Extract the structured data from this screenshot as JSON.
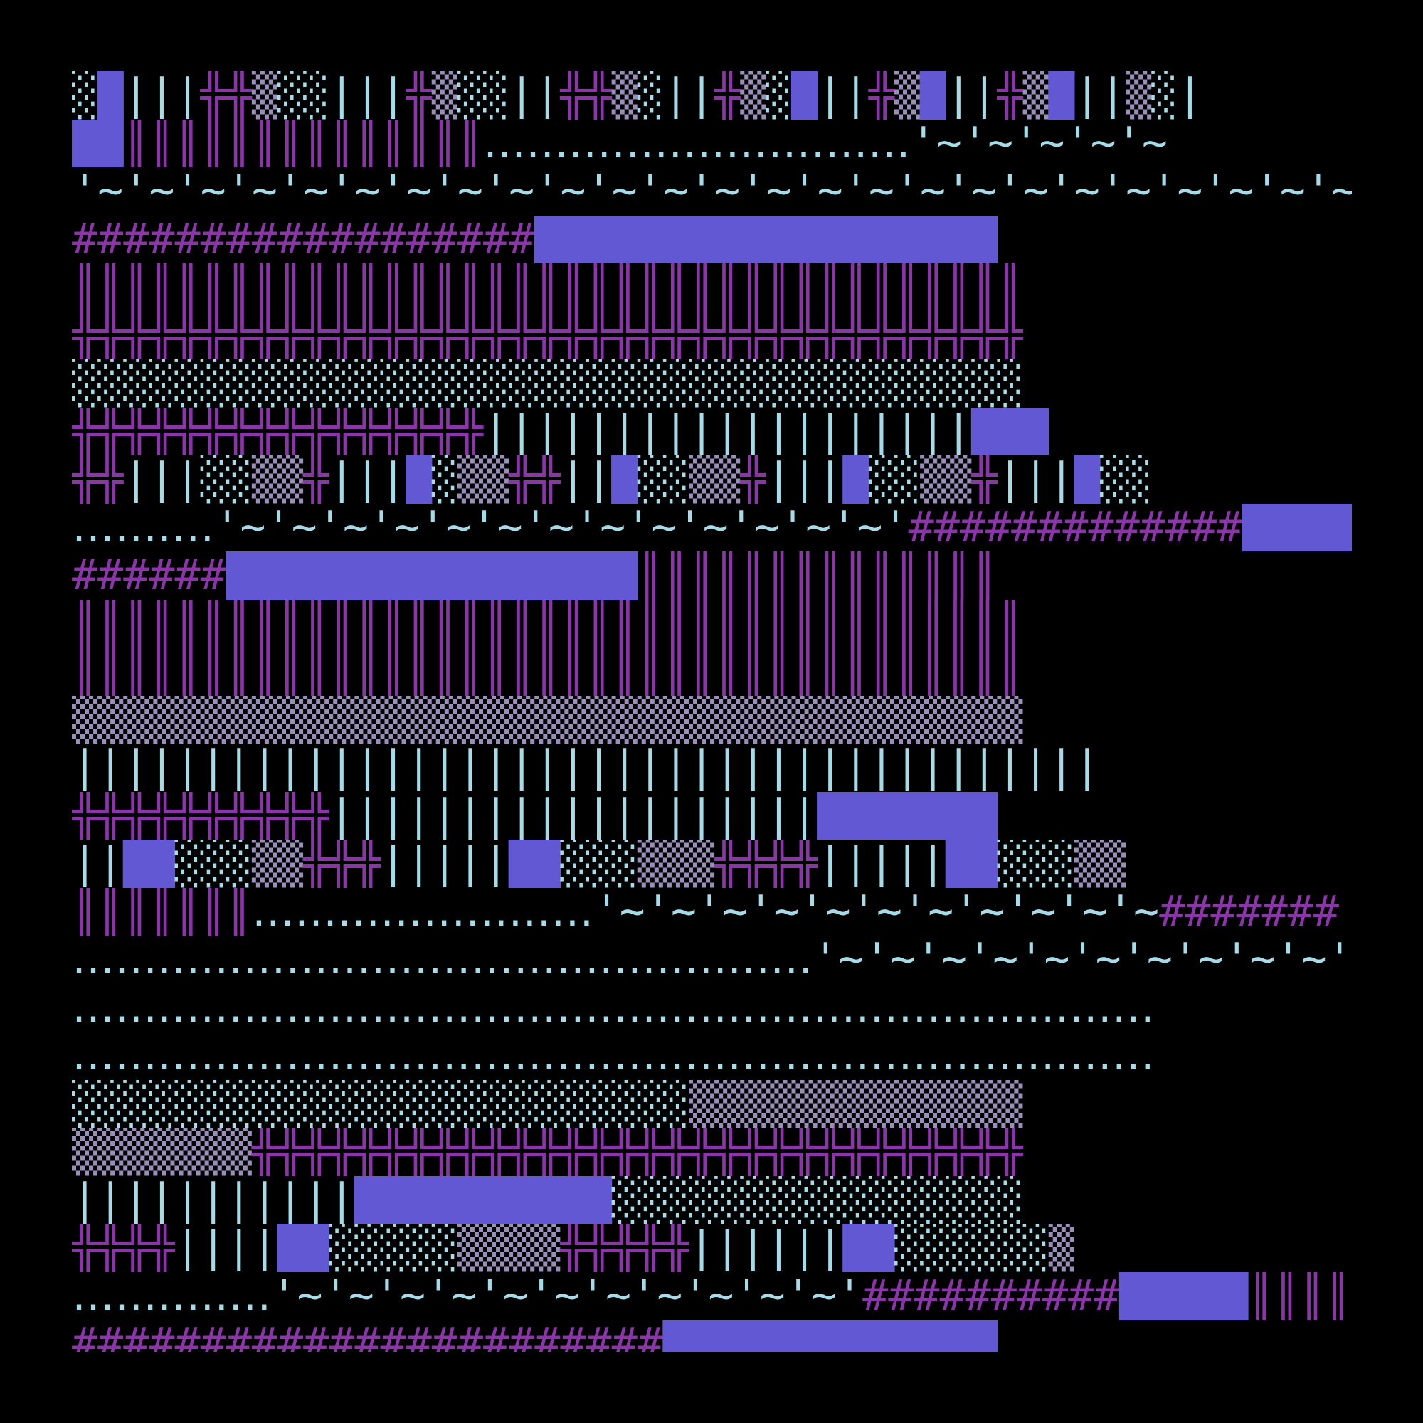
{
  "palette": {
    "background": "#000000",
    "purple": "#8a35a8",
    "violet": "#6258d4",
    "lightblue": "#a8dbe8",
    "muted": "#9a8fb8"
  },
  "rows": [
    [
      [
        "lightblue",
        "░"
      ],
      [
        "violet",
        "█"
      ],
      [
        "lightblue",
        "|||"
      ],
      [
        "purple",
        "╬╬"
      ],
      [
        "muted",
        "▒"
      ],
      [
        "lightblue",
        "░░"
      ],
      [
        "lightblue",
        "|||"
      ],
      [
        "purple",
        "╬"
      ],
      [
        "muted",
        "▒"
      ],
      [
        "lightblue",
        "░░"
      ],
      [
        "lightblue",
        "||"
      ],
      [
        "purple",
        "╬╬"
      ],
      [
        "muted",
        "▒"
      ],
      [
        "lightblue",
        "░"
      ],
      [
        "lightblue",
        "||"
      ],
      [
        "purple",
        "╬"
      ],
      [
        "muted",
        "▒"
      ],
      [
        "lightblue",
        "░"
      ],
      [
        "violet",
        "█"
      ],
      [
        "lightblue",
        "||"
      ],
      [
        "purple",
        "╬"
      ],
      [
        "muted",
        "▒"
      ],
      [
        "violet",
        "█"
      ],
      [
        "lightblue",
        "||"
      ],
      [
        "purple",
        "╬"
      ],
      [
        "muted",
        "▒"
      ],
      [
        "violet",
        "█"
      ],
      [
        "lightblue",
        "||"
      ],
      [
        "muted",
        "▒"
      ],
      [
        "lightblue",
        "░|"
      ]
    ],
    [
      [
        "violet",
        "██"
      ],
      [
        "purple",
        "║║║║║║║║║║║║║║"
      ],
      [
        "lightblue",
        "‥‥‥‥‥‥‥‥‥‥‥‥‥‥‥"
      ],
      [
        "lightblue",
        "'~'~'~'~'~"
      ]
    ],
    [
      [
        "lightblue",
        "'~'~'~'~'~'~'~'~'~'~'~'~'~'~'~'~'~'~'~'~'~'~'~'~'~'~'~'~'~'~'~'~'"
      ],
      [
        "purple",
        "######"
      ]
    ],
    [
      [
        "purple",
        "##################"
      ],
      [
        "violet",
        "██████████████████"
      ]
    ],
    [
      [
        "purple",
        "║║║║║║║║║║║║║║║║║║║║║║║║║║║║║║║║║║║║║"
      ]
    ],
    [
      [
        "purple",
        "╬╬╬╬╬╬╬╬╬╬╬╬╬╬╬╬╬╬╬╬╬╬╬╬╬╬╬╬╬╬╬╬╬╬╬╬╬"
      ]
    ],
    [
      [
        "lightblue",
        "░░░░░░░░░░░░░░░░░░░░░░░░░░░░░░░░░░░░░"
      ]
    ],
    [
      [
        "purple",
        "╬╬╬╬╬╬╬╬╬╬╬╬╬╬╬╬"
      ],
      [
        "lightblue",
        "|||||||||||||||||||"
      ],
      [
        "violet",
        "███"
      ]
    ],
    [
      [
        "purple",
        "╬╬"
      ],
      [
        "lightblue",
        "|||"
      ],
      [
        "lightblue",
        "░░"
      ],
      [
        "muted",
        "▒▒"
      ],
      [
        "purple",
        "╬"
      ],
      [
        "lightblue",
        "|||"
      ],
      [
        "violet",
        "█"
      ],
      [
        "lightblue",
        "░"
      ],
      [
        "muted",
        "▒▒"
      ],
      [
        "purple",
        "╬╬"
      ],
      [
        "lightblue",
        "||"
      ],
      [
        "violet",
        "█"
      ],
      [
        "lightblue",
        "░░"
      ],
      [
        "muted",
        "▒▒"
      ],
      [
        "purple",
        "╬"
      ],
      [
        "lightblue",
        "|||"
      ],
      [
        "violet",
        "█"
      ],
      [
        "lightblue",
        "░░"
      ],
      [
        "muted",
        "▒▒"
      ],
      [
        "purple",
        "╬"
      ],
      [
        "lightblue",
        "|||"
      ],
      [
        "violet",
        "█"
      ],
      [
        "lightblue",
        "░░"
      ]
    ],
    [
      [
        "lightblue",
        "‥‥‥‥‥"
      ],
      [
        "lightblue",
        "'~'~'~'~'~'~'~'~'~'~'~'~'~'"
      ],
      [
        "purple",
        "#############"
      ],
      [
        "violet",
        "█████"
      ]
    ],
    [
      [
        "purple",
        "######"
      ],
      [
        "violet",
        "████████████████"
      ],
      [
        "purple",
        "║║║║║║║║║║║║║║"
      ]
    ],
    [
      [
        "purple",
        "║║║║║║║║║║║║║║║║║║║║║║║║║║║║║║║║║║║║║"
      ]
    ],
    [
      [
        "purple",
        "║║║║║║║║║║║║║║║║║║║║║║║║║║║║║║║║║║║║║"
      ]
    ],
    [
      [
        "muted",
        "▒▒▒▒▒▒▒▒▒▒▒▒▒▒▒▒▒▒▒▒▒▒▒▒▒▒▒▒▒▒▒▒▒▒▒▒▒"
      ]
    ],
    [
      [
        "lightblue",
        "||||||||||||||||||||||||||||||||||||||||"
      ]
    ],
    [
      [
        "purple",
        "╬╬╬╬╬╬╬╬╬╬"
      ],
      [
        "lightblue",
        "|||||||||||||||||||"
      ],
      [
        "violet",
        "███████"
      ]
    ],
    [
      [
        "lightblue",
        "||"
      ],
      [
        "violet",
        "██"
      ],
      [
        "lightblue",
        "░░░"
      ],
      [
        "muted",
        "▒▒"
      ],
      [
        "purple",
        "╬╬╬"
      ],
      [
        "lightblue",
        "|||||"
      ],
      [
        "violet",
        "██"
      ],
      [
        "lightblue",
        "░░░"
      ],
      [
        "muted",
        "▒▒▒"
      ],
      [
        "purple",
        "╬╬╬╬"
      ],
      [
        "lightblue",
        "|||||"
      ],
      [
        "violet",
        "██"
      ],
      [
        "lightblue",
        "░░░"
      ],
      [
        "muted",
        "▒▒"
      ]
    ],
    [
      [
        "purple",
        "║║║║║║║"
      ],
      [
        "lightblue",
        "‥‥‥‥‥‥‥‥‥‥‥‥"
      ],
      [
        "lightblue",
        "'~'~'~'~'~'~'~'~'~'~'~"
      ],
      [
        "purple",
        "#######"
      ]
    ],
    [
      [
        "lightblue",
        "‥‥‥‥‥‥‥‥‥‥‥‥‥‥‥‥‥‥‥‥‥‥‥‥‥‥"
      ],
      [
        "lightblue",
        "'~'~'~'~'~'~'~'~'~'~'"
      ]
    ],
    [
      [
        "lightblue",
        "‥‥‥‥‥‥‥‥‥‥‥‥‥‥‥‥‥‥‥‥‥‥‥‥‥‥‥‥‥‥‥‥‥‥‥‥‥‥"
      ]
    ],
    [
      [
        "lightblue",
        "‥‥‥‥‥‥‥‥‥‥‥‥‥‥‥‥‥‥‥‥‥‥‥‥‥‥‥‥‥‥‥‥‥‥‥‥‥‥"
      ]
    ],
    [
      [
        "lightblue",
        "░░░░░░░░░░░░░░░░░░░░░░░░"
      ],
      [
        "muted",
        "▒▒▒▒▒▒▒▒▒▒▒▒▒"
      ]
    ],
    [
      [
        "muted",
        "▒▒▒▒▒▒▒"
      ],
      [
        "purple",
        "╬╬╬╬╬╬╬╬╬╬╬╬╬╬╬╬╬╬╬╬╬╬╬╬╬╬╬╬╬╬"
      ]
    ],
    [
      [
        "lightblue",
        "|||||||||||"
      ],
      [
        "violet",
        "██████████"
      ],
      [
        "lightblue",
        "░░░░░░░░░░░░░░░░"
      ]
    ],
    [
      [
        "purple",
        "╬╬╬╬"
      ],
      [
        "lightblue",
        "||||"
      ],
      [
        "violet",
        "██"
      ],
      [
        "lightblue",
        "░░░░░"
      ],
      [
        "muted",
        "▒▒▒▒"
      ],
      [
        "purple",
        "╬╬╬╬╬"
      ],
      [
        "lightblue",
        "||||||"
      ],
      [
        "violet",
        "██"
      ],
      [
        "lightblue",
        "░░░░░░"
      ],
      [
        "muted",
        "▒"
      ]
    ],
    [
      [
        "lightblue",
        "‥‥‥‥‥‥‥"
      ],
      [
        "lightblue",
        "'~'~'~'~'~'~'~'~'~'~'~'"
      ],
      [
        "purple",
        "##########"
      ],
      [
        "violet",
        "█████"
      ],
      [
        "purple",
        "║║║║"
      ]
    ],
    [
      [
        "purple",
        "#######################"
      ],
      [
        "violet",
        "█████████████"
      ]
    ]
  ]
}
